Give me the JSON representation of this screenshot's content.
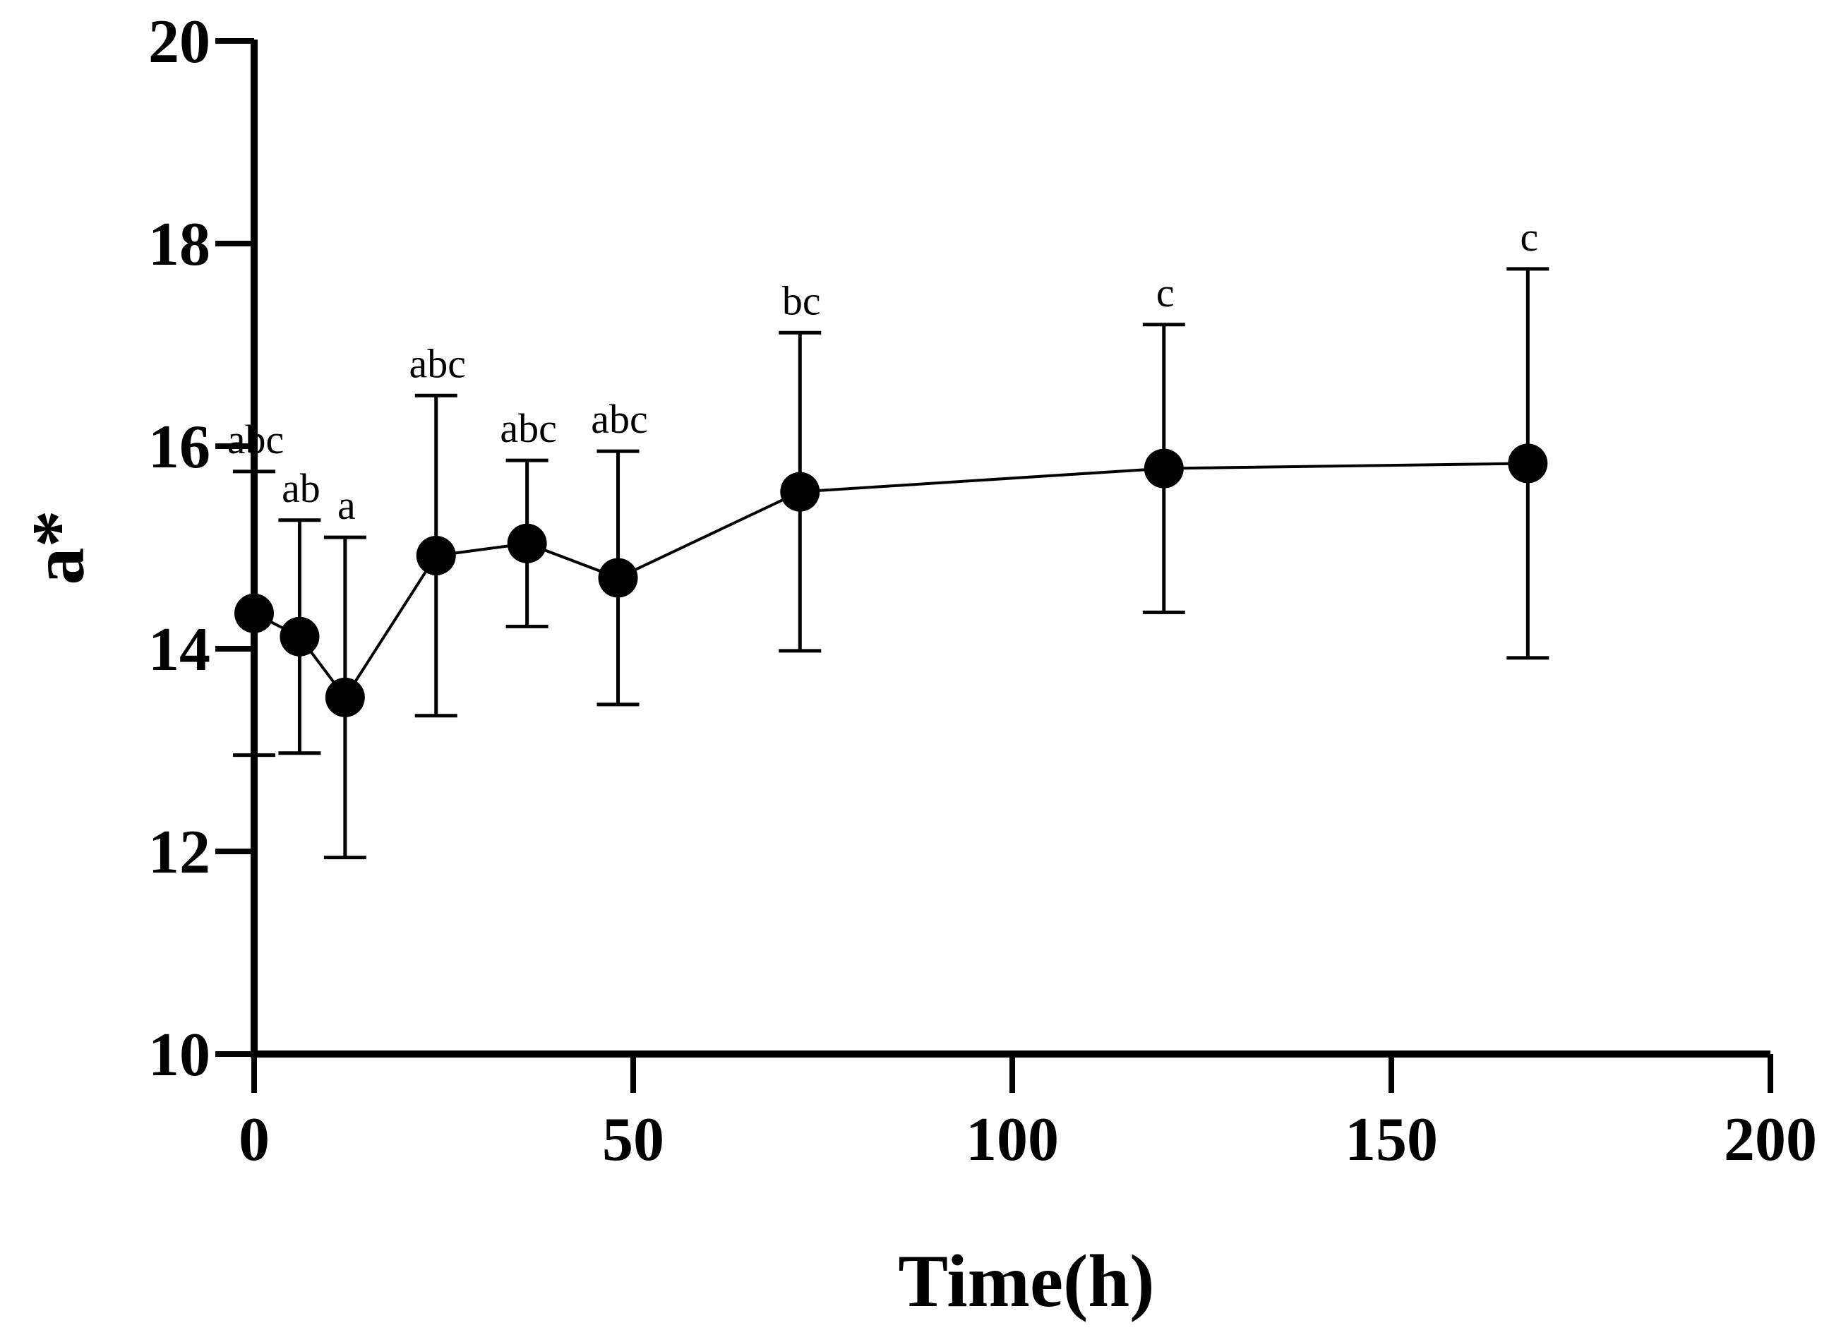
{
  "chart_data": {
    "type": "scatter",
    "title": "",
    "xlabel": "Time(h)",
    "ylabel": "a*",
    "xlim": [
      0,
      200
    ],
    "ylim": [
      10,
      20
    ],
    "xticks": [
      0,
      50,
      100,
      150,
      200
    ],
    "yticks": [
      10,
      12,
      14,
      16,
      18,
      20
    ],
    "grid": false,
    "legend": null,
    "series": [
      {
        "name": "a*",
        "connected": true,
        "x": [
          0,
          6,
          12,
          24,
          36,
          48,
          72,
          120,
          168
        ],
        "y": [
          14.35,
          14.12,
          13.52,
          14.92,
          15.04,
          14.7,
          15.55,
          15.78,
          15.83
        ],
        "error": [
          1.4,
          1.15,
          1.58,
          1.58,
          0.82,
          1.25,
          1.57,
          1.42,
          1.92
        ],
        "labels": [
          "abc",
          "ab",
          "a",
          "abc",
          "abc",
          "abc",
          "bc",
          "c",
          "c"
        ]
      }
    ]
  }
}
